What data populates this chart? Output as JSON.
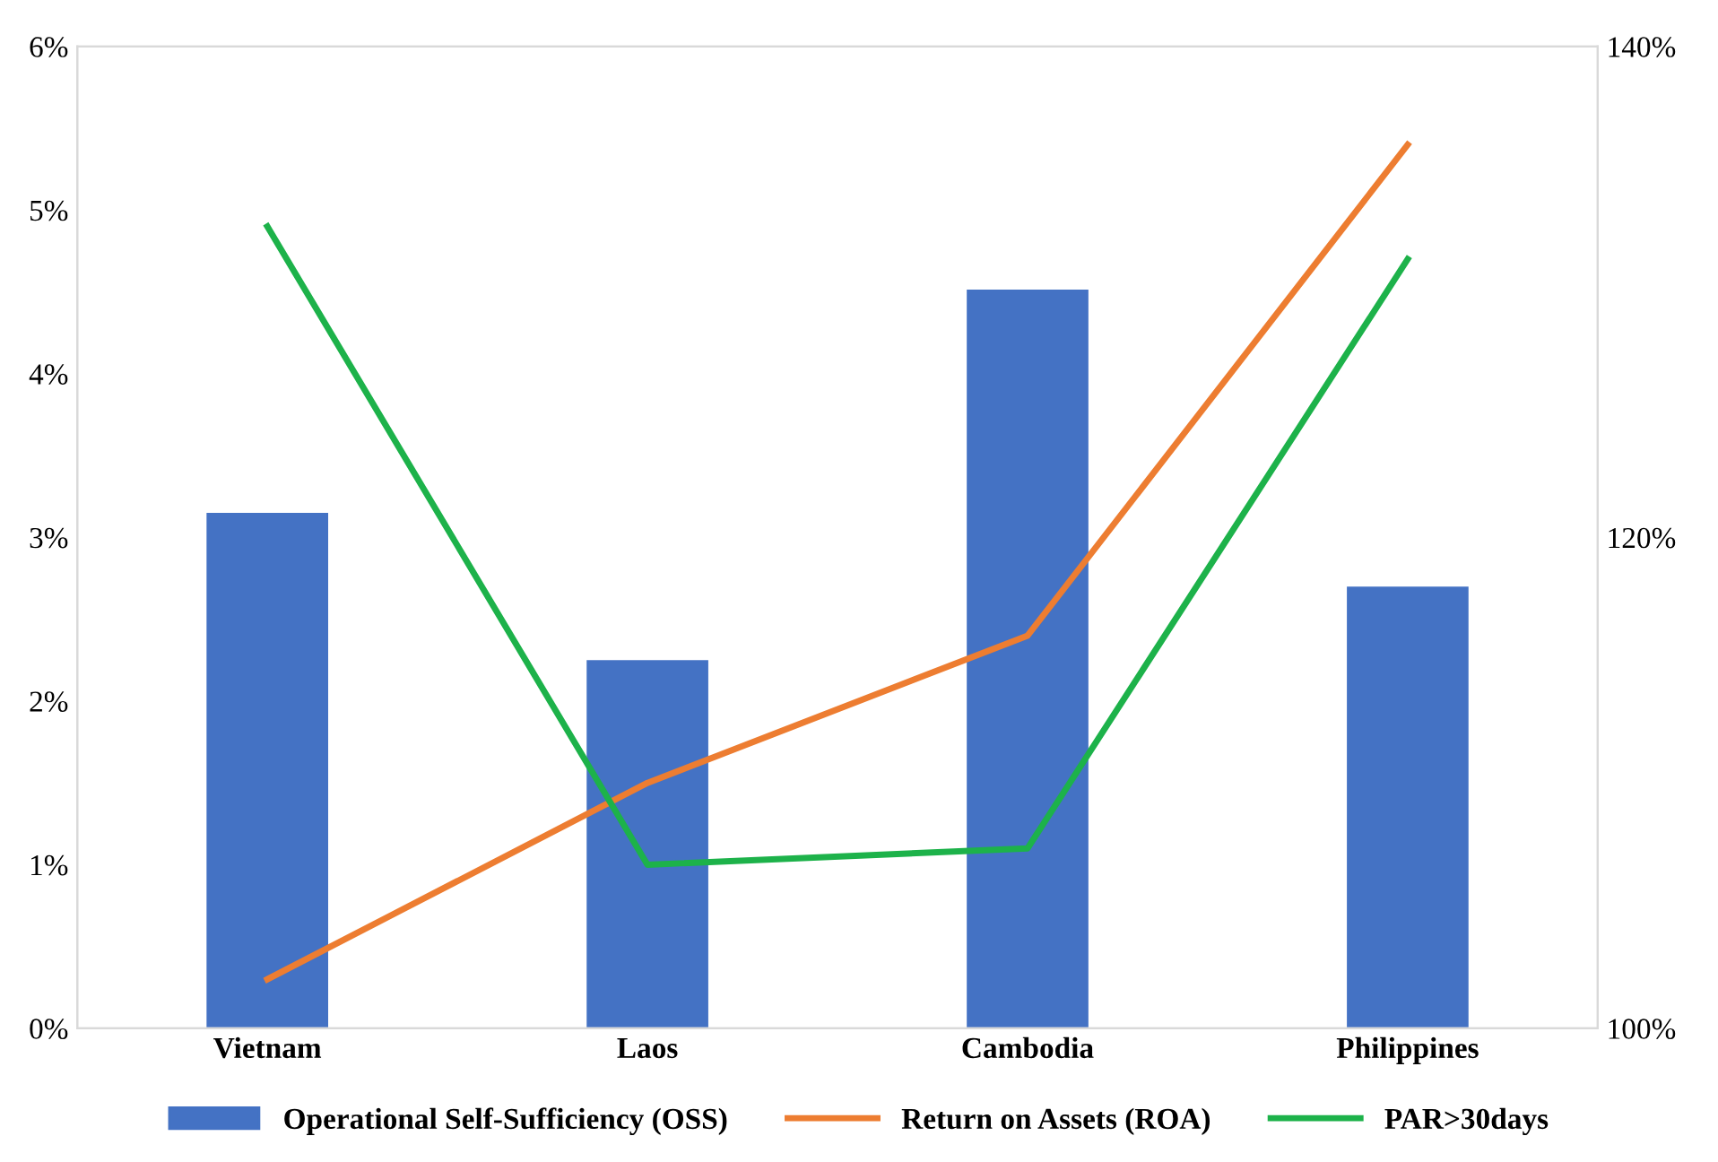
{
  "chart_data": {
    "type": "bar",
    "categories": [
      "Vietnam",
      "Laos",
      "Cambodia",
      "Philippines"
    ],
    "series": [
      {
        "name": "Operational Self-Sufficiency (OSS)",
        "axis": "y2",
        "color": "#4472c4",
        "values": [
          121.0,
          115.0,
          130.1,
          118.0
        ]
      },
      {
        "name": "Return on Assets (ROA)",
        "type": "line",
        "axis": "y",
        "color": "#ed7d31",
        "values": [
          0.3,
          1.5,
          2.4,
          5.4
        ]
      },
      {
        "name": "PAR>30days",
        "type": "line",
        "axis": "y",
        "color": "#1db24a",
        "values": [
          4.9,
          1.0,
          1.1,
          4.7
        ]
      }
    ],
    "ylim": [
      0,
      6
    ],
    "yticks": [
      {
        "value": 0,
        "label": "0%"
      },
      {
        "value": 1,
        "label": "1%"
      },
      {
        "value": 2,
        "label": "2%"
      },
      {
        "value": 3,
        "label": "3%"
      },
      {
        "value": 4,
        "label": "4%"
      },
      {
        "value": 5,
        "label": "5%"
      },
      {
        "value": 6,
        "label": "6%"
      }
    ],
    "y2lim": [
      100,
      140
    ],
    "y2ticks": [
      {
        "value": 100,
        "label": "100%"
      },
      {
        "value": 120,
        "label": "120%"
      },
      {
        "value": 140,
        "label": "140%"
      }
    ],
    "grid": false,
    "legend": "bottom",
    "marker": "none",
    "line_style": "solid"
  }
}
